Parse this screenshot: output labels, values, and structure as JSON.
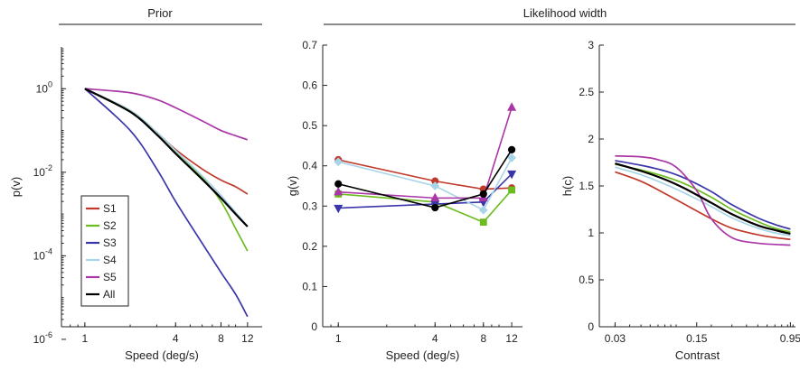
{
  "headers": {
    "prior": "Prior",
    "likelihood_width": "Likelihood width"
  },
  "colors": {
    "S1": "#c0392b",
    "S2": "#6cbb1f",
    "S3": "#3a35a8",
    "S4": "#a8d4e8",
    "S5": "#a937a6",
    "All": "#000000"
  },
  "chart_data": [
    {
      "type": "line",
      "title": "Prior",
      "xlabel": "Speed (deg/s)",
      "ylabel": "p(v)",
      "xscale": "log",
      "yscale": "log",
      "xlim": [
        0.7,
        15
      ],
      "ylim": [
        2e-06,
        10
      ],
      "xticks": [
        1,
        4,
        8,
        12
      ],
      "yticks": [
        {
          "value": 1,
          "mantissa": "10",
          "exp": "0"
        },
        {
          "value": 0.01,
          "mantissa": "10",
          "exp": "-2"
        },
        {
          "value": 0.0001,
          "mantissa": "10",
          "exp": "-4"
        },
        {
          "value": 1e-06,
          "mantissa": "10",
          "exp": "-6"
        }
      ],
      "legend": {
        "placement": "bottom-left",
        "entries": [
          "S1",
          "S2",
          "S3",
          "S4",
          "S5",
          "All"
        ]
      },
      "series": [
        {
          "name": "S1",
          "x": [
            1,
            2,
            3,
            4,
            6,
            8,
            10,
            12
          ],
          "y": [
            1,
            0.3,
            0.09,
            0.035,
            0.012,
            0.0065,
            0.0045,
            0.003
          ]
        },
        {
          "name": "S2",
          "x": [
            1,
            2,
            3,
            4,
            6,
            8,
            10,
            12
          ],
          "y": [
            1,
            0.3,
            0.09,
            0.032,
            0.0075,
            0.002,
            0.00045,
            0.00013
          ]
        },
        {
          "name": "S3",
          "x": [
            1,
            2,
            3,
            4,
            6,
            8,
            10,
            12
          ],
          "y": [
            1,
            0.1,
            0.012,
            0.002,
            0.0002,
            4e-05,
            1.2e-05,
            3.5e-06
          ]
        },
        {
          "name": "S4",
          "x": [
            1,
            2,
            3,
            4,
            6,
            8,
            10,
            12
          ],
          "y": [
            1,
            0.3,
            0.09,
            0.033,
            0.0082,
            0.0028,
            0.0011,
            0.0005
          ]
        },
        {
          "name": "S5",
          "x": [
            1,
            2,
            3,
            4,
            6,
            8,
            10,
            12
          ],
          "y": [
            1,
            0.8,
            0.55,
            0.35,
            0.17,
            0.1,
            0.075,
            0.06
          ]
        },
        {
          "name": "All",
          "x": [
            1,
            2,
            3,
            4,
            6,
            8,
            10,
            12
          ],
          "y": [
            1,
            0.28,
            0.08,
            0.028,
            0.0068,
            0.0024,
            0.001,
            0.0005
          ]
        }
      ]
    },
    {
      "type": "line",
      "title": "",
      "xlabel": "Speed (deg/s)",
      "ylabel": "g(v)",
      "xscale": "log",
      "xlim": [
        0.8,
        14
      ],
      "ylim": [
        0,
        0.7
      ],
      "xticks": [
        1,
        4,
        8,
        12
      ],
      "yticks": [
        0,
        0.1,
        0.2,
        0.3,
        0.4,
        0.5,
        0.6,
        0.7
      ],
      "series": [
        {
          "name": "S1",
          "marker": "circle",
          "x": [
            1,
            4,
            8,
            12
          ],
          "y": [
            0.415,
            0.362,
            0.342,
            0.345
          ]
        },
        {
          "name": "S2",
          "marker": "square",
          "x": [
            1,
            4,
            8,
            12
          ],
          "y": [
            0.33,
            0.31,
            0.26,
            0.34
          ]
        },
        {
          "name": "S3",
          "marker": "triangle-down",
          "x": [
            1,
            4,
            8,
            12
          ],
          "y": [
            0.295,
            0.305,
            0.31,
            0.38
          ]
        },
        {
          "name": "S4",
          "marker": "diamond",
          "x": [
            1,
            4,
            8,
            12
          ],
          "y": [
            0.41,
            0.35,
            0.29,
            0.42
          ]
        },
        {
          "name": "S5",
          "marker": "triangle-up",
          "x": [
            1,
            4,
            8,
            12
          ],
          "y": [
            0.335,
            0.32,
            0.32,
            0.545
          ]
        },
        {
          "name": "All",
          "marker": "circle",
          "x": [
            1,
            4,
            8,
            12
          ],
          "y": [
            0.355,
            0.296,
            0.33,
            0.44
          ]
        }
      ]
    },
    {
      "type": "line",
      "title": "",
      "xlabel": "Contrast",
      "ylabel": "h(c)",
      "xscale": "log",
      "xlim": [
        0.022,
        1.05
      ],
      "ylim": [
        0,
        3
      ],
      "xticks": [
        0.03,
        0.15,
        0.95
      ],
      "yticks": [
        0,
        0.5,
        1,
        1.5,
        2,
        2.5,
        3
      ],
      "series": [
        {
          "name": "S1",
          "x": [
            0.03,
            0.05,
            0.08,
            0.12,
            0.2,
            0.3,
            0.5,
            0.7,
            0.95
          ],
          "y": [
            1.65,
            1.55,
            1.42,
            1.3,
            1.15,
            1.05,
            0.98,
            0.95,
            0.93
          ]
        },
        {
          "name": "S2",
          "x": [
            0.03,
            0.05,
            0.08,
            0.12,
            0.2,
            0.3,
            0.5,
            0.7,
            0.95
          ],
          "y": [
            1.73,
            1.67,
            1.6,
            1.52,
            1.38,
            1.25,
            1.12,
            1.05,
            1.01
          ]
        },
        {
          "name": "S3",
          "x": [
            0.03,
            0.05,
            0.08,
            0.12,
            0.2,
            0.3,
            0.5,
            0.7,
            0.95
          ],
          "y": [
            1.77,
            1.72,
            1.66,
            1.58,
            1.44,
            1.3,
            1.16,
            1.09,
            1.04
          ]
        },
        {
          "name": "S4",
          "x": [
            0.03,
            0.05,
            0.08,
            0.12,
            0.2,
            0.3,
            0.5,
            0.7,
            0.95
          ],
          "y": [
            1.7,
            1.62,
            1.52,
            1.42,
            1.28,
            1.16,
            1.05,
            1.0,
            0.97
          ]
        },
        {
          "name": "S5",
          "x": [
            0.03,
            0.05,
            0.07,
            0.1,
            0.15,
            0.2,
            0.3,
            0.5,
            0.95
          ],
          "y": [
            1.82,
            1.81,
            1.78,
            1.7,
            1.45,
            1.15,
            0.95,
            0.89,
            0.87
          ]
        },
        {
          "name": "All",
          "x": [
            0.03,
            0.05,
            0.08,
            0.12,
            0.2,
            0.3,
            0.5,
            0.7,
            0.95
          ],
          "y": [
            1.74,
            1.66,
            1.57,
            1.47,
            1.32,
            1.2,
            1.08,
            1.03,
            0.99
          ]
        }
      ]
    }
  ]
}
